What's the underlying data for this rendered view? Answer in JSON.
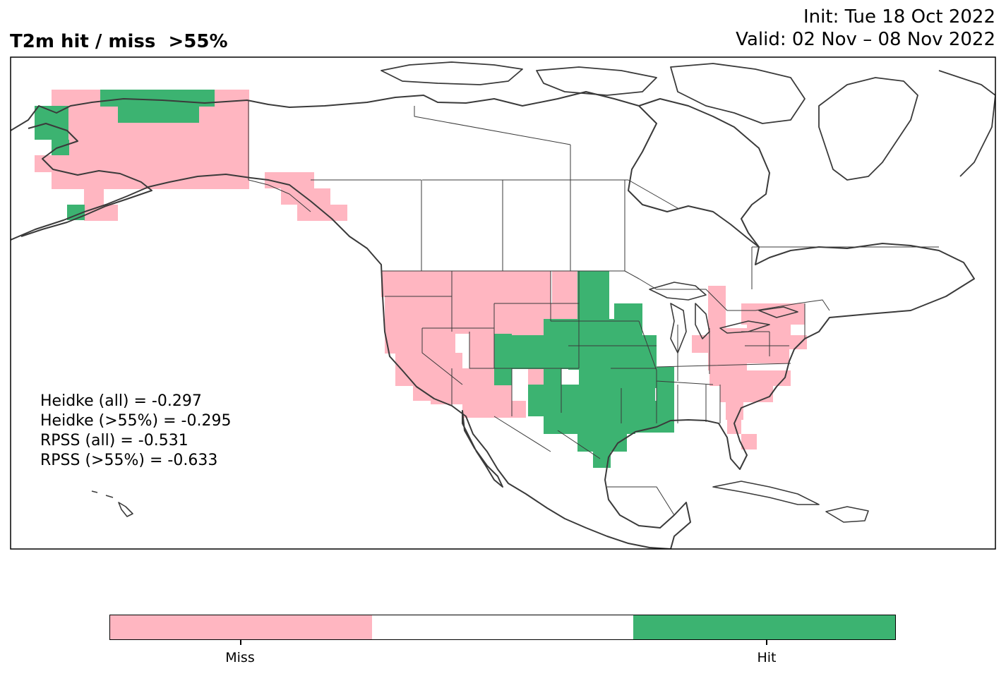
{
  "title": "T2m hit / miss  >55%",
  "init_label": "Init: Tue 18 Oct 2022",
  "valid_label": "Valid: 02 Nov – 08 Nov 2022",
  "stats": [
    "Heidke (all) = -0.297",
    "Heidke (>55%) = -0.295",
    "RPSS (all) = -0.531",
    "RPSS (>55%) = -0.633"
  ],
  "colors": {
    "miss": "#FFB6C1",
    "neutral": "#FFFFFF",
    "hit": "#3CB371",
    "coastline": "#3a3a3a",
    "border": "#000000"
  },
  "legend": {
    "labels": [
      "Miss",
      "Hit"
    ],
    "segments": [
      "miss",
      "neutral",
      "hit"
    ]
  }
}
